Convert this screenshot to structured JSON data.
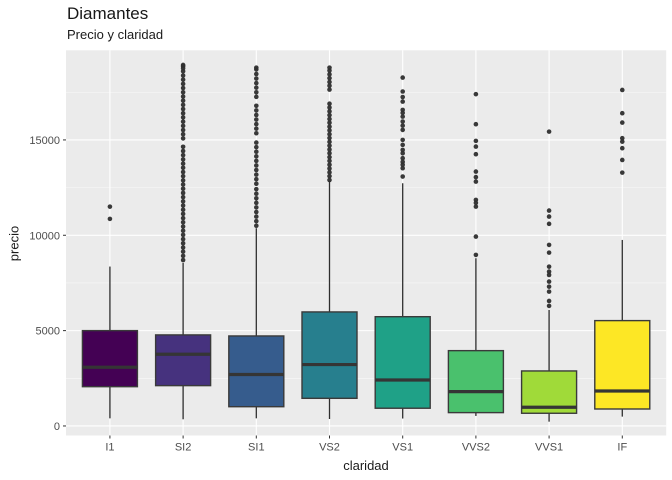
{
  "chart_data": {
    "type": "boxplot",
    "title": "Diamantes",
    "subtitle": "Precio y claridad",
    "xlabel": "claridad",
    "ylabel": "precio",
    "categories": [
      "I1",
      "SI2",
      "SI1",
      "VS2",
      "VS1",
      "VVS2",
      "VVS1",
      "IF"
    ],
    "y_ticks": [
      0,
      5000,
      10000,
      15000
    ],
    "y_minor_ticks": [
      2500,
      7500,
      12500,
      17500
    ],
    "ylim": [
      -500,
      19700
    ],
    "legend": "none",
    "grid": "on",
    "colors": {
      "panel_bg": "#EBEBEB",
      "grid_major": "#FFFFFF",
      "grid_minor": "#F5F5F5",
      "box_border": "#3A3A3A",
      "median_line": "#353535",
      "whisker": "#2E2E2E",
      "outlier": "#2E2E2E",
      "tick_mark": "#333333",
      "axis_text": "#4D4D4D",
      "title_text": "#171717"
    },
    "box_fill_colors": [
      "#440154",
      "#46327E",
      "#365C8D",
      "#277F8E",
      "#1FA187",
      "#4AC16D",
      "#A0DA39",
      "#FDE725"
    ],
    "series": [
      {
        "category": "I1",
        "color": "#440154",
        "whisker_low": 400,
        "q1": 2060,
        "median": 3080,
        "q3": 5000,
        "whisker_high": 8360,
        "outliers": [
          10860,
          11500
        ]
      },
      {
        "category": "SI2",
        "color": "#46327E",
        "whisker_low": 350,
        "q1": 2115,
        "median": 3760,
        "q3": 4775,
        "whisker_high": 8550,
        "outliers": [
          8700,
          8920,
          9140,
          9360,
          9580,
          9800,
          10020,
          10240,
          10460,
          10680,
          10900,
          11120,
          11340,
          11560,
          11780,
          12000,
          12220,
          12440,
          12660,
          12880,
          13100,
          13320,
          13540,
          13760,
          13980,
          14200,
          14420,
          14640,
          15080,
          15300,
          15520,
          15740,
          15960,
          16180,
          16400,
          16620,
          16840,
          17060,
          17280,
          17500,
          17720,
          17940,
          18160,
          18380,
          18600,
          18760,
          18870,
          18930
        ]
      },
      {
        "category": "SI1",
        "color": "#365C8D",
        "whisker_low": 400,
        "q1": 1010,
        "median": 2700,
        "q3": 4720,
        "whisker_high": 10370,
        "outliers": [
          10500,
          10740,
          10980,
          11220,
          11460,
          11700,
          11940,
          12180,
          12420,
          12700,
          12940,
          13180,
          13420,
          13660,
          13900,
          14140,
          14380,
          14620,
          14860,
          15350,
          15590,
          15830,
          16070,
          16310,
          16550,
          16790,
          17260,
          17500,
          17740,
          17980,
          18220,
          18460,
          18700,
          18790
        ]
      },
      {
        "category": "VS2",
        "color": "#277F8E",
        "whisker_low": 365,
        "q1": 1450,
        "median": 3220,
        "q3": 5980,
        "whisker_high": 12850,
        "outliers": [
          12900,
          13100,
          13300,
          13500,
          13700,
          13900,
          14100,
          14300,
          14500,
          14700,
          14900,
          15100,
          15300,
          15500,
          15700,
          15900,
          16100,
          16300,
          16500,
          16700,
          16900,
          17640,
          17840,
          18040,
          18240,
          18440,
          18640,
          18790
        ]
      },
      {
        "category": "VS1",
        "color": "#1FA187",
        "whisker_low": 390,
        "q1": 930,
        "median": 2410,
        "q3": 5730,
        "whisker_high": 12730,
        "outliers": [
          13080,
          13515,
          13700,
          13850,
          14040,
          14300,
          14475,
          14740,
          15000,
          15525,
          15750,
          15965,
          16225,
          16420,
          16575,
          17010,
          17250,
          17540,
          18270
        ]
      },
      {
        "category": "VVS2",
        "color": "#4AC16D",
        "whisker_low": 525,
        "q1": 700,
        "median": 1800,
        "q3": 3950,
        "whisker_high": 8795,
        "outliers": [
          8970,
          9930,
          11505,
          11700,
          11855,
          12815,
          13050,
          13340,
          14250,
          14650,
          14950,
          15825,
          17400
        ]
      },
      {
        "category": "VVS1",
        "color": "#A0DA39",
        "whisker_low": 225,
        "q1": 666,
        "median": 980,
        "q3": 2885,
        "whisker_high": 6085,
        "outliers": [
          6295,
          6555,
          7045,
          7305,
          7570,
          7920,
          8095,
          8355,
          9090,
          9495,
          10600,
          10980,
          11295,
          15435
        ]
      },
      {
        "category": "IF",
        "color": "#FDE725",
        "whisker_low": 490,
        "q1": 890,
        "median": 1835,
        "q3": 5525,
        "whisker_high": 9755,
        "outliers": [
          13285,
          13950,
          14565,
          14910,
          15090,
          15910,
          16400,
          17620
        ]
      }
    ]
  }
}
